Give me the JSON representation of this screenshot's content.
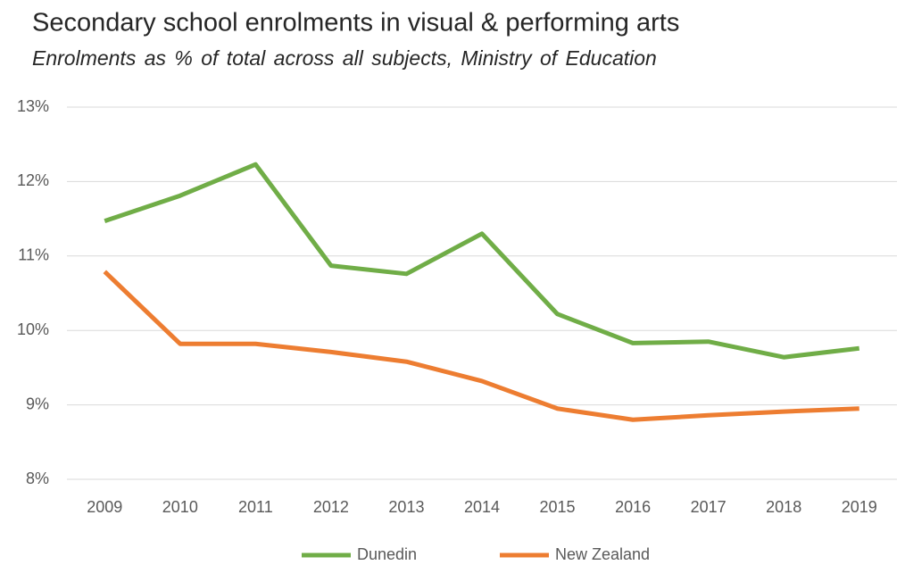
{
  "chart_data": {
    "type": "line",
    "title": "Secondary school enrolments in visual & performing arts",
    "subtitle": "Enrolments as % of total across all subjects, Ministry of Education",
    "categories": [
      "2009",
      "2010",
      "2011",
      "2012",
      "2013",
      "2014",
      "2015",
      "2016",
      "2017",
      "2018",
      "2019"
    ],
    "series": [
      {
        "name": "Dunedin",
        "color": "#70ad47",
        "values": [
          11.47,
          11.81,
          12.23,
          10.87,
          10.76,
          11.3,
          10.22,
          9.83,
          9.85,
          9.64,
          9.76
        ]
      },
      {
        "name": "New Zealand",
        "color": "#ed7d31",
        "values": [
          10.79,
          9.82,
          9.82,
          9.71,
          9.58,
          9.32,
          8.95,
          8.8,
          8.86,
          8.91,
          8.95
        ]
      }
    ],
    "ylim": [
      8,
      13
    ],
    "yticks": [
      {
        "value": 8,
        "label": "8%"
      },
      {
        "value": 9,
        "label": "9%"
      },
      {
        "value": 10,
        "label": "10%"
      },
      {
        "value": 11,
        "label": "11%"
      },
      {
        "value": 12,
        "label": "12%"
      },
      {
        "value": 13,
        "label": "13%"
      }
    ],
    "grid": true,
    "legend": "bottom"
  }
}
